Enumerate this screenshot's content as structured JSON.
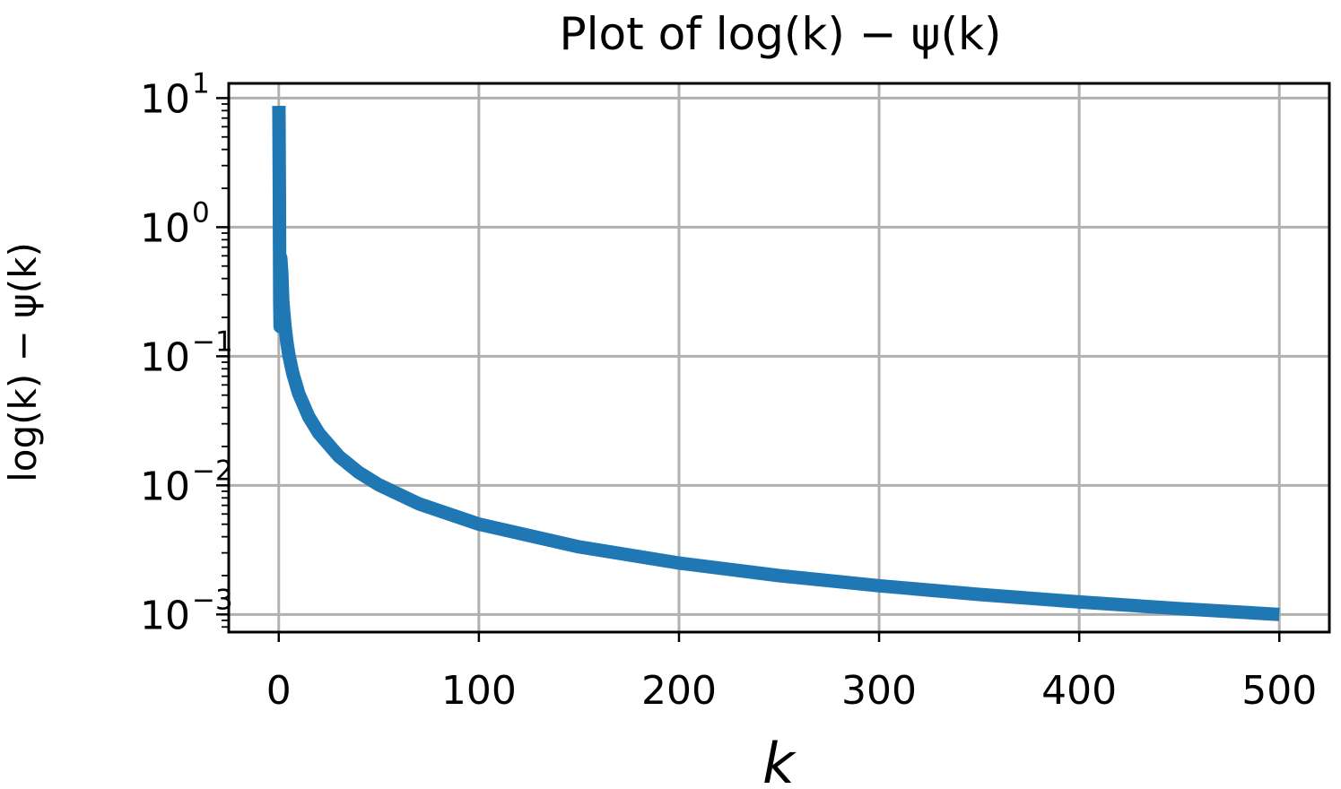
{
  "chart_data": {
    "type": "line",
    "title": "Plot of log(k) − ψ(k)",
    "xlabel": "k",
    "ylabel": "log(k) − ψ(k)",
    "yscale": "log",
    "xlim": [
      -25,
      525
    ],
    "ylim": [
      0.00073,
      13
    ],
    "grid": true,
    "x_ticks": [
      "0",
      "100",
      "200",
      "300",
      "400",
      "500"
    ],
    "y_ticks": [
      {
        "value": 10,
        "base": "10",
        "exp": "1"
      },
      {
        "value": 1,
        "base": "10",
        "exp": "0"
      },
      {
        "value": 0.1,
        "base": "10",
        "exp": "−1"
      },
      {
        "value": 0.01,
        "base": "10",
        "exp": "−2"
      },
      {
        "value": 0.001,
        "base": "10",
        "exp": "−3"
      }
    ],
    "series": [
      {
        "color": "#1f77b4",
        "x": [
          0.05,
          0.1,
          0.2,
          0.3,
          0.5,
          0.7,
          1,
          1.5,
          2,
          3,
          4,
          5,
          7,
          10,
          15,
          20,
          30,
          40,
          50,
          70,
          100,
          150,
          200,
          250,
          300,
          350,
          400,
          450,
          500
        ],
        "y": [
          8.7,
          7.5,
          3.93,
          2.13,
          0.27,
          0.17,
          0.5772,
          0.442,
          0.2705,
          0.1758,
          0.1303,
          0.1036,
          0.0737,
          0.0512,
          0.034,
          0.0254,
          0.0168,
          0.0126,
          0.0101,
          0.0072,
          0.00501,
          0.00334,
          0.0025,
          0.002,
          0.00167,
          0.00143,
          0.00125,
          0.00111,
          0.001
        ]
      }
    ]
  }
}
